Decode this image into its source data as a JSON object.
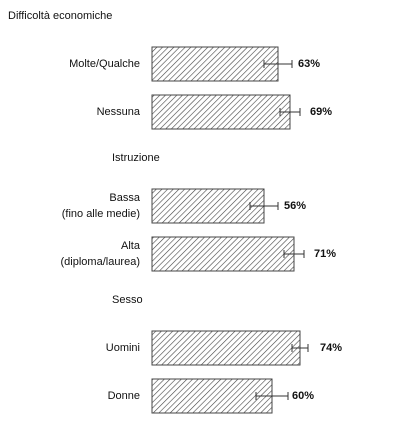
{
  "chart_data": {
    "type": "bar",
    "orientation": "horizontal",
    "color": "#444444",
    "hatch": true,
    "xlim": [
      0,
      100
    ],
    "groups": [
      {
        "title": "Difficoltà economiche",
        "categories": [
          [
            "Molte/Qualche"
          ],
          [
            "Nessuna"
          ]
        ],
        "values": [
          63,
          69
        ],
        "value_labels": [
          "63%",
          "69%"
        ],
        "errors": [
          7,
          5
        ]
      },
      {
        "title": "Istruzione",
        "categories": [
          [
            "Bassa",
            "(fino alle medie)"
          ],
          [
            "Alta",
            "(diploma/laurea)"
          ]
        ],
        "values": [
          56,
          71
        ],
        "value_labels": [
          "56%",
          "71%"
        ],
        "errors": [
          7,
          5
        ]
      },
      {
        "title": "Sesso",
        "categories": [
          [
            "Uomini"
          ],
          [
            "Donne"
          ]
        ],
        "values": [
          74,
          60
        ],
        "value_labels": [
          "74%",
          "60%"
        ],
        "errors": [
          4,
          8
        ]
      }
    ]
  }
}
